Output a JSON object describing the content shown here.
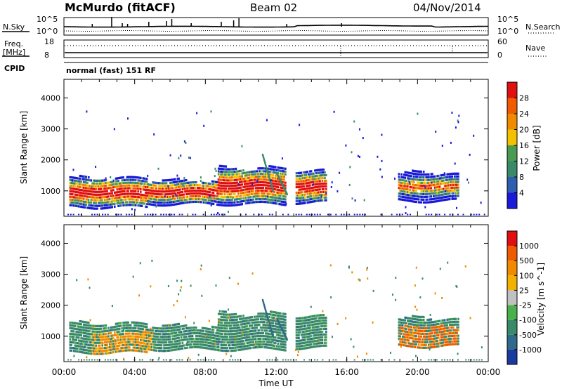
{
  "header": {
    "station": "McMurdo (fitACF)",
    "beam": "Beam 02",
    "date": "04/Nov/2014"
  },
  "panels": {
    "nsky_label": "N.Sky",
    "nsky_ticks": [
      "10^5",
      "10^0"
    ],
    "nsearch_label": "N.Search",
    "nsearch_ticks": [
      "10^5",
      "10^0"
    ],
    "freq_label_1": "Freq.",
    "freq_label_2": "[MHz]",
    "freq_ticks": [
      "18",
      "8"
    ],
    "nave_label": "Nave",
    "nave_ticks": [
      "60",
      "0"
    ],
    "cpid_label": "CPID",
    "cpid_text": "normal (fast) 151 RF"
  },
  "chart_data": [
    {
      "type": "heatmap",
      "name": "power",
      "xlabel": "Time UT",
      "ylabel": "Slant Range [km]",
      "x_ticks": [
        "00:00",
        "04:00",
        "08:00",
        "12:00",
        "16:00",
        "20:00",
        "00:00"
      ],
      "x_range_hours": [
        0,
        24
      ],
      "y_ticks": [
        1000,
        2000,
        3000,
        4000
      ],
      "ylim": [
        180,
        4600
      ],
      "colorbar": {
        "label": "Power [dB]",
        "ticks": [
          "4",
          "8",
          "12",
          "16",
          "20",
          "24",
          "28"
        ],
        "colors": [
          "#1a1ad8",
          "#2f5db0",
          "#3a8a6a",
          "#4a9a52",
          "#f2c200",
          "#f08a00",
          "#f05a00",
          "#e01010"
        ]
      },
      "bands": [
        {
          "t0": 0.3,
          "t1": 4.7,
          "r0": 450,
          "r1": 1380
        },
        {
          "t0": 4.7,
          "t1": 8.7,
          "r0": 550,
          "r1": 1300
        },
        {
          "t0": 8.7,
          "t1": 12.5,
          "r0": 550,
          "r1": 1700
        },
        {
          "t0": 13.1,
          "t1": 14.8,
          "r0": 600,
          "r1": 1600
        },
        {
          "t0": 18.9,
          "t1": 22.3,
          "r0": 650,
          "r1": 1550
        }
      ],
      "scatter_ranges": [
        {
          "t0": 5.5,
          "t1": 7.5,
          "r0": 2400,
          "r1": 3400
        },
        {
          "t0": 15.5,
          "t1": 17.5,
          "r0": 1700,
          "r1": 2900
        },
        {
          "t0": 20.0,
          "t1": 22.2,
          "r0": 1400,
          "r1": 2200
        }
      ]
    },
    {
      "type": "heatmap",
      "name": "velocity",
      "xlabel": "Time UT",
      "ylabel": "Slant Range [km]",
      "x_ticks": [
        "00:00",
        "04:00",
        "08:00",
        "12:00",
        "16:00",
        "20:00",
        "00:00"
      ],
      "y_ticks": [
        1000,
        2000,
        3000,
        4000
      ],
      "ylim": [
        180,
        4600
      ],
      "colorbar": {
        "label": "Velocity [m s^-1]",
        "ticks": [
          "1000",
          "500",
          "100",
          "25",
          "-25",
          "-100",
          "-500",
          "-1000"
        ],
        "colors": [
          "#1a3aa0",
          "#2f6a8a",
          "#3a8a6a",
          "#4ab04a",
          "#c0c0c0",
          "#f2b000",
          "#f08a00",
          "#f05a00",
          "#e01010"
        ]
      },
      "bands": [
        {
          "t0": 0.3,
          "t1": 4.7,
          "r0": 450,
          "r1": 1380
        },
        {
          "t0": 4.7,
          "t1": 8.7,
          "r0": 550,
          "r1": 1300
        },
        {
          "t0": 8.7,
          "t1": 12.5,
          "r0": 550,
          "r1": 1700
        },
        {
          "t0": 13.1,
          "t1": 14.8,
          "r0": 600,
          "r1": 1600
        },
        {
          "t0": 18.9,
          "t1": 22.3,
          "r0": 650,
          "r1": 1550
        }
      ]
    }
  ]
}
